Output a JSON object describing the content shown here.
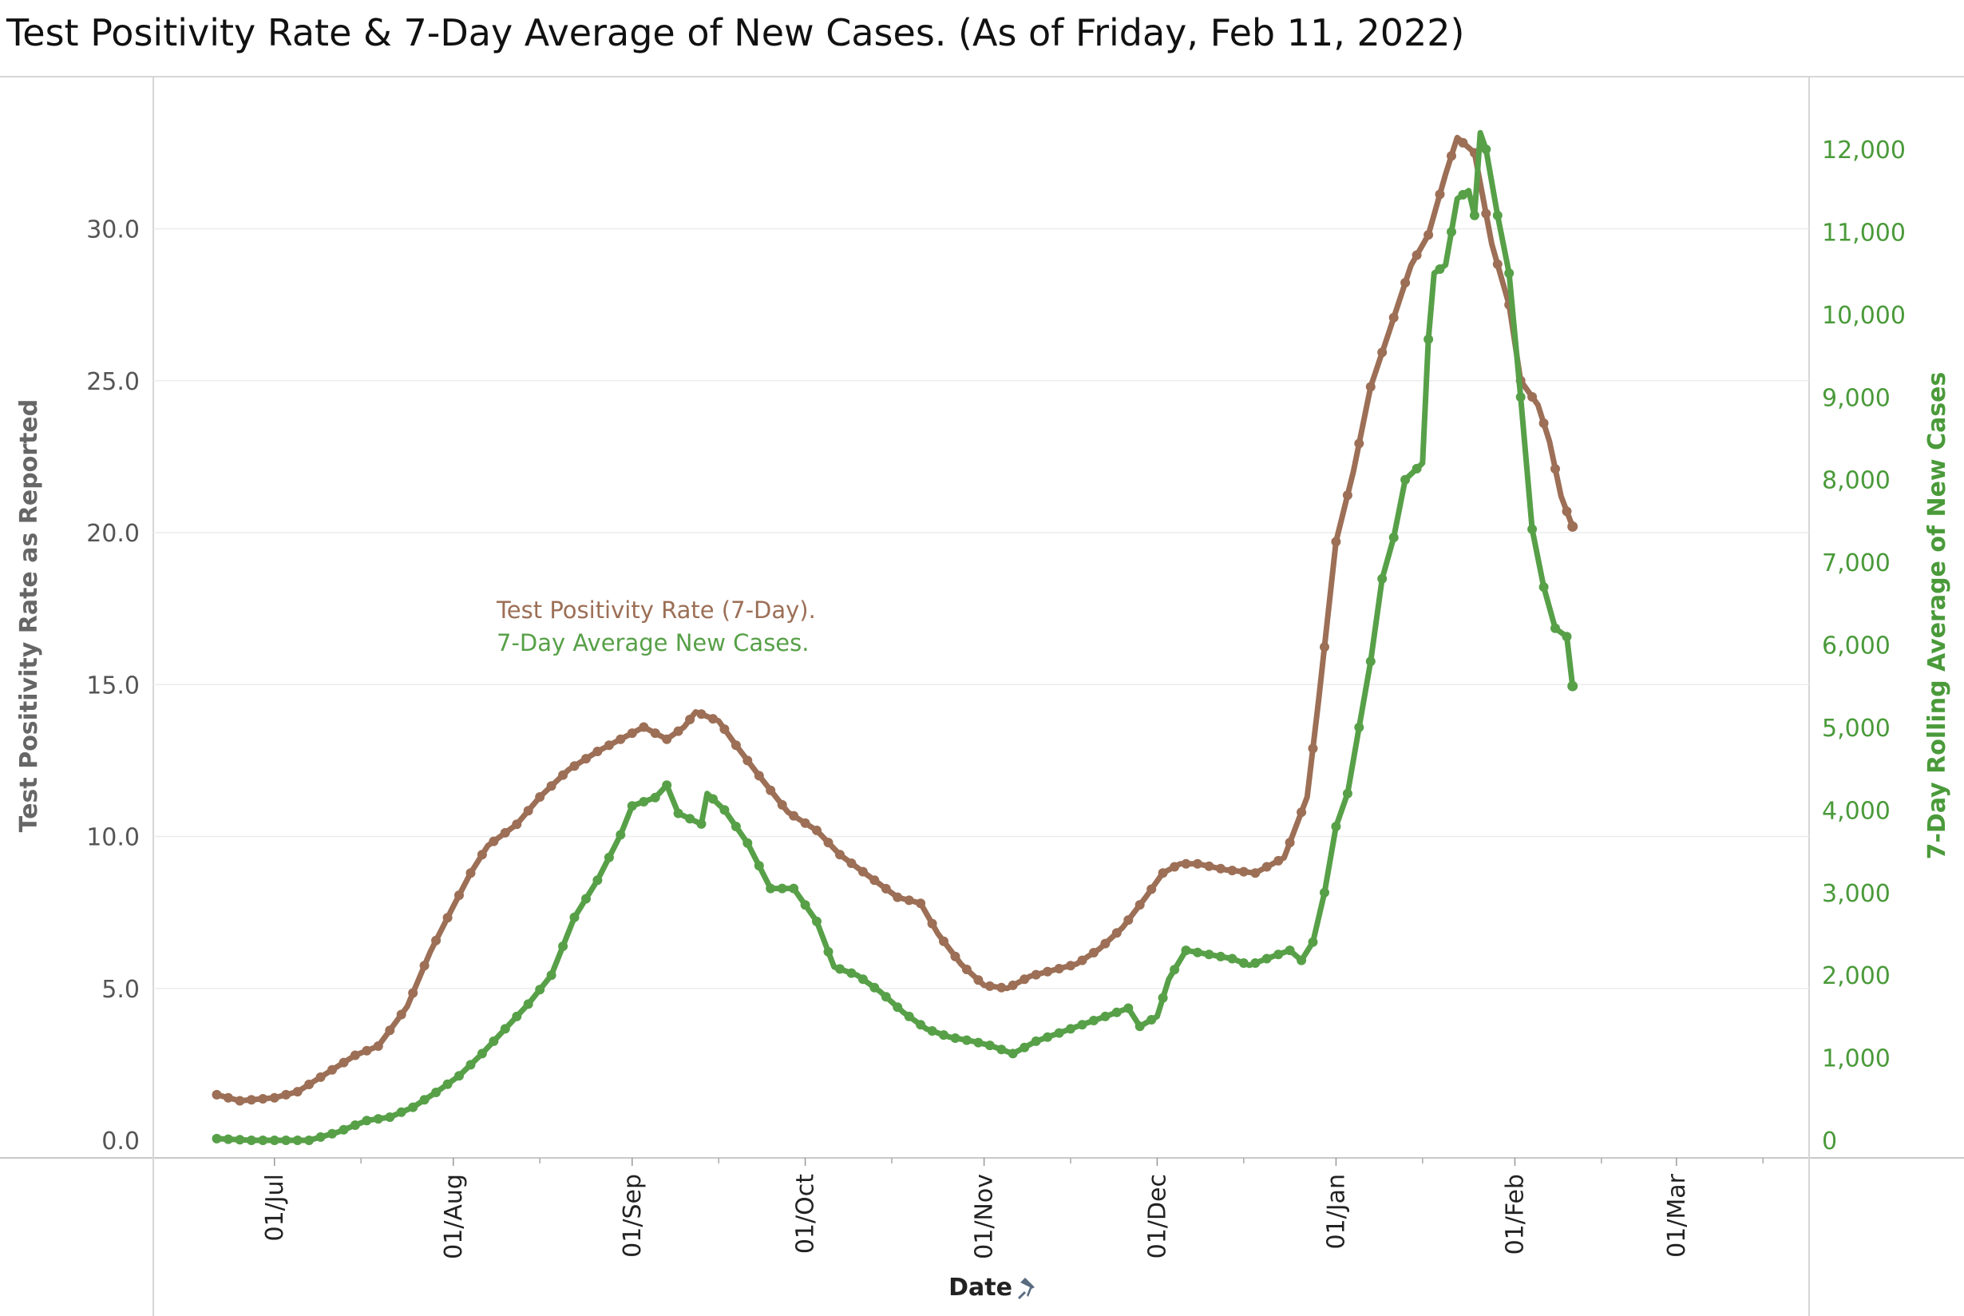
{
  "title": "Test Positivity Rate & 7-Day Average of New Cases. (As of Friday, Feb 11, 2022)",
  "chart_data": {
    "type": "line",
    "xlabel": "Date",
    "ylabel_left": "Test Positivity Rate as Reported",
    "ylabel_right": "7-Day Rolling  Average of New Cases",
    "x_range": [
      "2021-06-10",
      "2022-03-24"
    ],
    "x_ticks": [
      {
        "date": "2021-07-01",
        "label": "01/Jul"
      },
      {
        "date": "2021-08-01",
        "label": "01/Aug"
      },
      {
        "date": "2021-09-01",
        "label": "01/Sep"
      },
      {
        "date": "2021-10-01",
        "label": "01/Oct"
      },
      {
        "date": "2021-11-01",
        "label": "01/Nov"
      },
      {
        "date": "2021-12-01",
        "label": "01/Dec"
      },
      {
        "date": "2022-01-01",
        "label": "01/Jan"
      },
      {
        "date": "2022-02-01",
        "label": "01/Feb"
      },
      {
        "date": "2022-03-01",
        "label": "01/Mar"
      }
    ],
    "y_left": {
      "min": 0,
      "max": 34,
      "ticks": [
        {
          "value": 0,
          "label": "0.0"
        },
        {
          "value": 5,
          "label": "5.0"
        },
        {
          "value": 10,
          "label": "10.0"
        },
        {
          "value": 15,
          "label": "15.0"
        },
        {
          "value": 20,
          "label": "20.0"
        },
        {
          "value": 25,
          "label": "25.0"
        },
        {
          "value": 30,
          "label": "30.0"
        }
      ]
    },
    "y_right": {
      "min": 0,
      "max": 12600,
      "ticks": [
        {
          "value": 0,
          "label": "0"
        },
        {
          "value": 1000,
          "label": "1,000"
        },
        {
          "value": 2000,
          "label": "2,000"
        },
        {
          "value": 3000,
          "label": "3,000"
        },
        {
          "value": 4000,
          "label": "4,000"
        },
        {
          "value": 5000,
          "label": "5,000"
        },
        {
          "value": 6000,
          "label": "6,000"
        },
        {
          "value": 7000,
          "label": "7,000"
        },
        {
          "value": 8000,
          "label": "8,000"
        },
        {
          "value": 9000,
          "label": "9,000"
        },
        {
          "value": 10000,
          "label": "10,000"
        },
        {
          "value": 11000,
          "label": "11,000"
        },
        {
          "value": 12000,
          "label": "12,000"
        }
      ]
    },
    "grid": "horizontal",
    "legend_position": "inside-left",
    "series": [
      {
        "name": "Test Positivity Rate  (7-Day).",
        "axis": "left",
        "color": "#9c6f56",
        "points": [
          [
            "2021-06-21",
            1.5
          ],
          [
            "2021-06-25",
            1.3
          ],
          [
            "2021-07-01",
            1.4
          ],
          [
            "2021-07-05",
            1.6
          ],
          [
            "2021-07-10",
            2.2
          ],
          [
            "2021-07-15",
            2.8
          ],
          [
            "2021-07-19",
            3.1
          ],
          [
            "2021-07-24",
            4.4
          ],
          [
            "2021-07-28",
            6.2
          ],
          [
            "2021-08-01",
            7.7
          ],
          [
            "2021-08-04",
            8.8
          ],
          [
            "2021-08-07",
            9.7
          ],
          [
            "2021-08-12",
            10.4
          ],
          [
            "2021-08-16",
            11.3
          ],
          [
            "2021-08-21",
            12.2
          ],
          [
            "2021-08-26",
            12.8
          ],
          [
            "2021-08-31",
            13.3
          ],
          [
            "2021-09-03",
            13.6
          ],
          [
            "2021-09-07",
            13.2
          ],
          [
            "2021-09-10",
            13.6
          ],
          [
            "2021-09-12",
            14.1
          ],
          [
            "2021-09-16",
            13.8
          ],
          [
            "2021-09-19",
            13.0
          ],
          [
            "2021-09-23",
            12.0
          ],
          [
            "2021-09-28",
            10.8
          ],
          [
            "2021-10-03",
            10.2
          ],
          [
            "2021-10-07",
            9.4
          ],
          [
            "2021-10-12",
            8.7
          ],
          [
            "2021-10-17",
            8.0
          ],
          [
            "2021-10-21",
            7.8
          ],
          [
            "2021-10-24",
            6.8
          ],
          [
            "2021-10-28",
            5.8
          ],
          [
            "2021-11-01",
            5.1
          ],
          [
            "2021-11-05",
            5.0
          ],
          [
            "2021-11-09",
            5.4
          ],
          [
            "2021-11-13",
            5.6
          ],
          [
            "2021-11-17",
            5.8
          ],
          [
            "2021-11-21",
            6.3
          ],
          [
            "2021-11-25",
            7.0
          ],
          [
            "2021-11-29",
            8.0
          ],
          [
            "2021-12-02",
            8.8
          ],
          [
            "2021-12-05",
            9.1
          ],
          [
            "2021-12-08",
            9.1
          ],
          [
            "2021-12-13",
            8.9
          ],
          [
            "2021-12-18",
            8.8
          ],
          [
            "2021-12-23",
            9.3
          ],
          [
            "2021-12-27",
            11.3
          ],
          [
            "2021-12-29",
            14.5
          ],
          [
            "2022-01-01",
            19.7
          ],
          [
            "2022-01-04",
            22.0
          ],
          [
            "2022-01-07",
            24.8
          ],
          [
            "2022-01-10",
            26.5
          ],
          [
            "2022-01-14",
            28.8
          ],
          [
            "2022-01-17",
            29.8
          ],
          [
            "2022-01-20",
            31.8
          ],
          [
            "2022-01-22",
            33.0
          ],
          [
            "2022-01-25",
            32.5
          ],
          [
            "2022-01-28",
            29.5
          ],
          [
            "2022-01-31",
            27.5
          ],
          [
            "2022-02-02",
            25.0
          ],
          [
            "2022-02-05",
            24.2
          ],
          [
            "2022-02-07",
            23.0
          ],
          [
            "2022-02-09",
            21.2
          ],
          [
            "2022-02-11",
            20.2
          ]
        ]
      },
      {
        "name": "7-Day Average New Cases.",
        "axis": "right",
        "color": "#57a048",
        "points": [
          [
            "2021-06-21",
            20
          ],
          [
            "2021-06-27",
            0
          ],
          [
            "2021-07-03",
            0
          ],
          [
            "2021-07-07",
            0
          ],
          [
            "2021-07-12",
            100
          ],
          [
            "2021-07-17",
            240
          ],
          [
            "2021-07-21",
            280
          ],
          [
            "2021-07-25",
            400
          ],
          [
            "2021-07-29",
            580
          ],
          [
            "2021-08-02",
            780
          ],
          [
            "2021-08-06",
            1050
          ],
          [
            "2021-08-10",
            1350
          ],
          [
            "2021-08-14",
            1650
          ],
          [
            "2021-08-18",
            2000
          ],
          [
            "2021-08-22",
            2700
          ],
          [
            "2021-08-26",
            3150
          ],
          [
            "2021-08-30",
            3700
          ],
          [
            "2021-09-01",
            4050
          ],
          [
            "2021-09-05",
            4150
          ],
          [
            "2021-09-07",
            4300
          ],
          [
            "2021-09-09",
            3960
          ],
          [
            "2021-09-13",
            3830
          ],
          [
            "2021-09-14",
            4200
          ],
          [
            "2021-09-17",
            4000
          ],
          [
            "2021-09-21",
            3600
          ],
          [
            "2021-09-25",
            3050
          ],
          [
            "2021-09-29",
            3050
          ],
          [
            "2021-10-03",
            2650
          ],
          [
            "2021-10-06",
            2100
          ],
          [
            "2021-10-10",
            2000
          ],
          [
            "2021-10-14",
            1800
          ],
          [
            "2021-10-18",
            1550
          ],
          [
            "2021-10-22",
            1350
          ],
          [
            "2021-10-26",
            1250
          ],
          [
            "2021-10-30",
            1200
          ],
          [
            "2021-11-02",
            1150
          ],
          [
            "2021-11-06",
            1050
          ],
          [
            "2021-11-10",
            1200
          ],
          [
            "2021-11-14",
            1300
          ],
          [
            "2021-11-18",
            1400
          ],
          [
            "2021-11-22",
            1500
          ],
          [
            "2021-11-26",
            1600
          ],
          [
            "2021-11-28",
            1380
          ],
          [
            "2021-12-01",
            1500
          ],
          [
            "2021-12-03",
            1950
          ],
          [
            "2021-12-06",
            2300
          ],
          [
            "2021-12-10",
            2250
          ],
          [
            "2021-12-14",
            2200
          ],
          [
            "2021-12-17",
            2120
          ],
          [
            "2021-12-20",
            2200
          ],
          [
            "2021-12-24",
            2300
          ],
          [
            "2021-12-26",
            2180
          ],
          [
            "2021-12-28",
            2400
          ],
          [
            "2021-12-30",
            3000
          ],
          [
            "2022-01-01",
            3800
          ],
          [
            "2022-01-03",
            4200
          ],
          [
            "2022-01-05",
            5000
          ],
          [
            "2022-01-07",
            5800
          ],
          [
            "2022-01-09",
            6800
          ],
          [
            "2022-01-11",
            7300
          ],
          [
            "2022-01-13",
            8000
          ],
          [
            "2022-01-16",
            8200
          ],
          [
            "2022-01-17",
            9700
          ],
          [
            "2022-01-18",
            10500
          ],
          [
            "2022-01-20",
            10600
          ],
          [
            "2022-01-22",
            11400
          ],
          [
            "2022-01-24",
            11500
          ],
          [
            "2022-01-25",
            11200
          ],
          [
            "2022-01-26",
            12200
          ],
          [
            "2022-01-27",
            12000
          ],
          [
            "2022-01-29",
            11200
          ],
          [
            "2022-01-31",
            10500
          ],
          [
            "2022-02-02",
            9000
          ],
          [
            "2022-02-04",
            7400
          ],
          [
            "2022-02-06",
            6700
          ],
          [
            "2022-02-08",
            6200
          ],
          [
            "2022-02-10",
            6100
          ],
          [
            "2022-02-11",
            5500
          ]
        ]
      }
    ]
  }
}
